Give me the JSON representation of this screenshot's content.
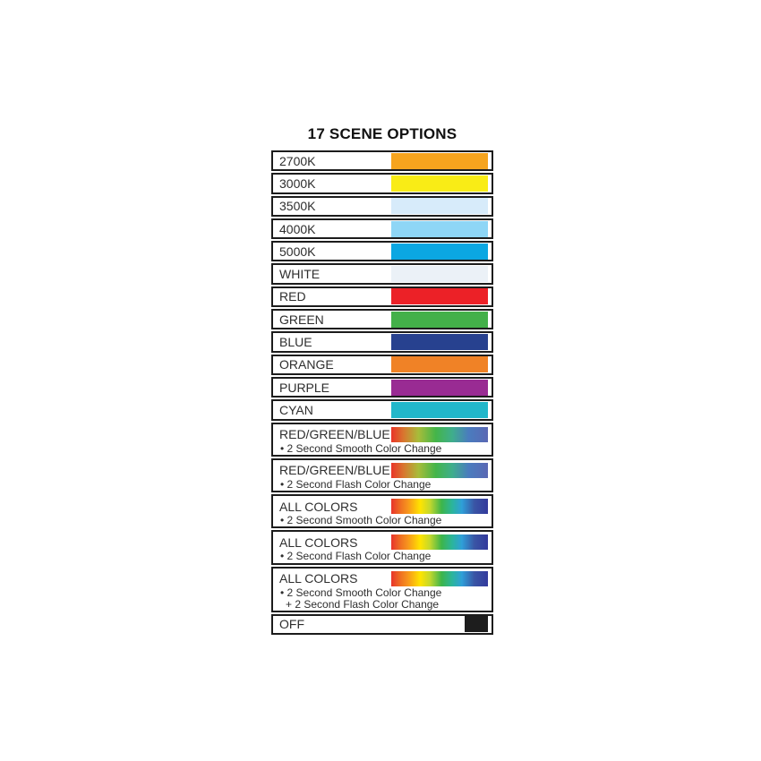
{
  "title": "17 SCENE OPTIONS",
  "colors": {
    "border": "#1c1c1c",
    "text": "#2e2e2e"
  },
  "gradients": {
    "rgb": "linear-gradient(90deg, #e93528 0%, #d8772f 13%, #a8bc3a 28%, #44b549 46%, #3fae8c 63%, #4a7cbe 80%, #5a68b4 100%)",
    "rainbow": "linear-gradient(90deg, #e8342b 0%, #ef7222 10%, #f7941d 17%, #ffe400 30%, #c3d82d 40%, #3db54a 52%, #2bb59c 63%, #2f9fd8 73%, #3a55a5 86%, #333a9c 100%)"
  },
  "rows": [
    {
      "label": "2700K",
      "swatch_type": "solid",
      "swatch_color": "#f6a41e",
      "notes": []
    },
    {
      "label": "3000K",
      "swatch_type": "solid",
      "swatch_color": "#f9ec16",
      "notes": []
    },
    {
      "label": "3500K",
      "swatch_type": "solid",
      "swatch_color": "#d7ebfa",
      "notes": []
    },
    {
      "label": "4000K",
      "swatch_type": "solid",
      "swatch_color": "#8ed6f6",
      "notes": []
    },
    {
      "label": "5000K",
      "swatch_type": "solid",
      "swatch_color": "#0ba7e2",
      "notes": []
    },
    {
      "label": "WHITE",
      "swatch_type": "solid",
      "swatch_color": "#ebf1f7",
      "notes": []
    },
    {
      "label": "RED",
      "swatch_type": "solid",
      "swatch_color": "#ec2127",
      "notes": []
    },
    {
      "label": "GREEN",
      "swatch_type": "solid",
      "swatch_color": "#43b049",
      "notes": []
    },
    {
      "label": "BLUE",
      "swatch_type": "solid",
      "swatch_color": "#27418f",
      "notes": []
    },
    {
      "label": "ORANGE",
      "swatch_type": "solid",
      "swatch_color": "#f08226",
      "notes": []
    },
    {
      "label": "PURPLE",
      "swatch_type": "solid",
      "swatch_color": "#992b93",
      "notes": []
    },
    {
      "label": "CYAN",
      "swatch_type": "solid",
      "swatch_color": "#22b7ca",
      "notes": []
    },
    {
      "label": "RED/GREEN/BLUE",
      "swatch_type": "gradient",
      "gradient": "rgb",
      "notes": [
        "• 2 Second Smooth Color Change"
      ]
    },
    {
      "label": "RED/GREEN/BLUE",
      "swatch_type": "gradient",
      "gradient": "rgb",
      "notes": [
        "• 2 Second Flash Color Change"
      ]
    },
    {
      "label": "ALL COLORS",
      "swatch_type": "gradient",
      "gradient": "rainbow",
      "notes": [
        "• 2 Second Smooth Color Change"
      ]
    },
    {
      "label": "ALL COLORS",
      "swatch_type": "gradient",
      "gradient": "rainbow",
      "notes": [
        "• 2 Second Flash Color Change"
      ]
    },
    {
      "label": "ALL COLORS",
      "swatch_type": "gradient",
      "gradient": "rainbow",
      "notes": [
        "• 2 Second Smooth Color Change",
        "+ 2 Second Flash Color Change"
      ]
    },
    {
      "label": "OFF",
      "swatch_type": "solid",
      "swatch_color": "#1d1d1d",
      "small": true,
      "notes": []
    }
  ]
}
